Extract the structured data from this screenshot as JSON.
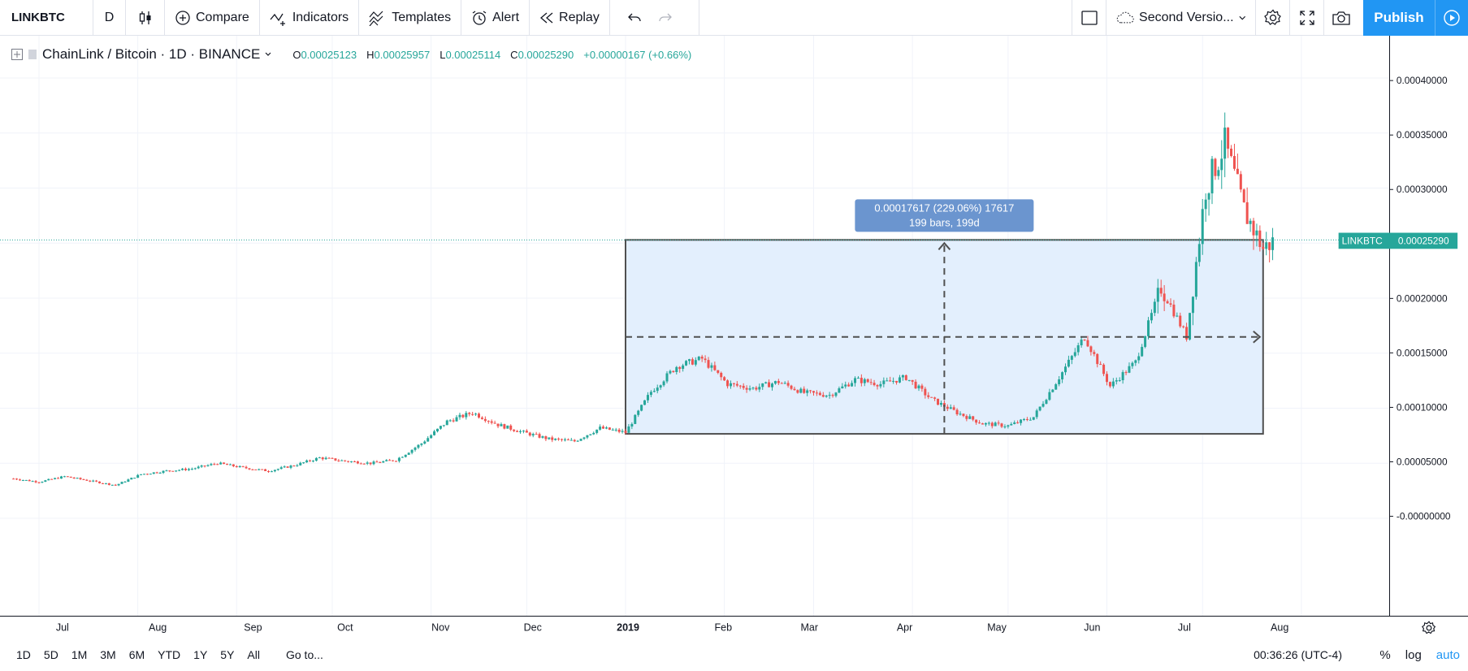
{
  "toolbar": {
    "symbol": "LINKBTC",
    "interval": "D",
    "compare": "Compare",
    "indicators": "Indicators",
    "templates": "Templates",
    "alert": "Alert",
    "replay": "Replay",
    "layout_name": "Second Versio...",
    "publish": "Publish"
  },
  "legend": {
    "title": "ChainLink / Bitcoin · 1D · BINANCE",
    "o_label": "O",
    "o": "0.00025123",
    "h_label": "H",
    "h": "0.00025957",
    "l_label": "L",
    "l": "0.00025114",
    "c_label": "C",
    "c": "0.00025290",
    "change": "+0.00000167 (+0.66%)"
  },
  "measure": {
    "line1": "0.00017617 (229.06%) 17617",
    "line2": "199 bars, 199d"
  },
  "last_price": {
    "symbol": "LINKBTC",
    "value": "0.00025290"
  },
  "bottom": {
    "ranges": [
      "1D",
      "5D",
      "1M",
      "3M",
      "6M",
      "YTD",
      "1Y",
      "5Y",
      "All"
    ],
    "goto": "Go to...",
    "clock": "00:36:26 (UTC-4)",
    "percent": "%",
    "log": "log",
    "auto": "auto"
  },
  "colors": {
    "up": "#26a69a",
    "down": "#ef5350",
    "accent": "#2196f3",
    "box_fill": "#e3effd"
  },
  "chart_data": {
    "type": "candlestick",
    "price_ticks": [
      "0.00040000",
      "0.00035000",
      "0.00030000",
      "0.00025000",
      "0.00020000",
      "0.00015000",
      "0.00010000",
      "0.00005000",
      "-0.00000000"
    ],
    "time_ticks": [
      "Jul",
      "Aug",
      "Sep",
      "Oct",
      "Nov",
      "Dec",
      "2019",
      "Feb",
      "Mar",
      "Apr",
      "May",
      "Jun",
      "Jul",
      "Aug"
    ],
    "ylim": [
      -2e-06,
      0.0004
    ],
    "grid": true,
    "candles": [
      {
        "date": "2018-06-23",
        "close": 3.6e-05
      },
      {
        "date": "2018-07-01",
        "close": 3.3e-05
      },
      {
        "date": "2018-07-09",
        "close": 3.8e-05
      },
      {
        "date": "2018-07-17",
        "close": 3.4e-05
      },
      {
        "date": "2018-07-25",
        "close": 3e-05
      },
      {
        "date": "2018-08-02",
        "close": 4e-05
      },
      {
        "date": "2018-08-10",
        "close": 4.3e-05
      },
      {
        "date": "2018-08-18",
        "close": 4.5e-05
      },
      {
        "date": "2018-08-26",
        "close": 5e-05
      },
      {
        "date": "2018-09-03",
        "close": 4.6e-05
      },
      {
        "date": "2018-09-11",
        "close": 4.3e-05
      },
      {
        "date": "2018-09-19",
        "close": 4.8e-05
      },
      {
        "date": "2018-09-27",
        "close": 5.5e-05
      },
      {
        "date": "2018-10-05",
        "close": 5.2e-05
      },
      {
        "date": "2018-10-13",
        "close": 5e-05
      },
      {
        "date": "2018-10-21",
        "close": 5.3e-05
      },
      {
        "date": "2018-10-29",
        "close": 6.8e-05
      },
      {
        "date": "2018-11-06",
        "close": 8.8e-05
      },
      {
        "date": "2018-11-14",
        "close": 9.6e-05
      },
      {
        "date": "2018-11-22",
        "close": 8.5e-05
      },
      {
        "date": "2018-11-30",
        "close": 7.8e-05
      },
      {
        "date": "2018-12-08",
        "close": 7.2e-05
      },
      {
        "date": "2018-12-16",
        "close": 7e-05
      },
      {
        "date": "2018-12-24",
        "close": 8.2e-05
      },
      {
        "date": "2019-01-01",
        "close": 7.8e-05
      },
      {
        "date": "2019-01-09",
        "close": 0.000115
      },
      {
        "date": "2019-01-17",
        "close": 0.000138
      },
      {
        "date": "2019-01-25",
        "close": 0.000145
      },
      {
        "date": "2019-02-02",
        "close": 0.000122
      },
      {
        "date": "2019-02-10",
        "close": 0.000118
      },
      {
        "date": "2019-02-18",
        "close": 0.000124
      },
      {
        "date": "2019-02-26",
        "close": 0.000114
      },
      {
        "date": "2019-03-06",
        "close": 0.000112
      },
      {
        "date": "2019-03-14",
        "close": 0.000126
      },
      {
        "date": "2019-03-22",
        "close": 0.000122
      },
      {
        "date": "2019-03-30",
        "close": 0.000128
      },
      {
        "date": "2019-04-07",
        "close": 0.000108
      },
      {
        "date": "2019-04-15",
        "close": 9.6e-05
      },
      {
        "date": "2019-04-23",
        "close": 8.6e-05
      },
      {
        "date": "2019-05-01",
        "close": 8.4e-05
      },
      {
        "date": "2019-05-09",
        "close": 9.2e-05
      },
      {
        "date": "2019-05-17",
        "close": 0.000128
      },
      {
        "date": "2019-05-25",
        "close": 0.000165
      },
      {
        "date": "2019-06-02",
        "close": 0.00012
      },
      {
        "date": "2019-06-10",
        "close": 0.000142
      },
      {
        "date": "2019-06-18",
        "close": 0.00021
      },
      {
        "date": "2019-06-26",
        "close": 0.000165
      },
      {
        "date": "2019-07-02",
        "close": 0.0003
      },
      {
        "date": "2019-07-08",
        "close": 0.00034
      },
      {
        "date": "2019-07-14",
        "close": 0.00028
      },
      {
        "date": "2019-07-20",
        "close": 0.000245
      },
      {
        "date": "2019-07-24",
        "close": 0.000253
      }
    ]
  }
}
